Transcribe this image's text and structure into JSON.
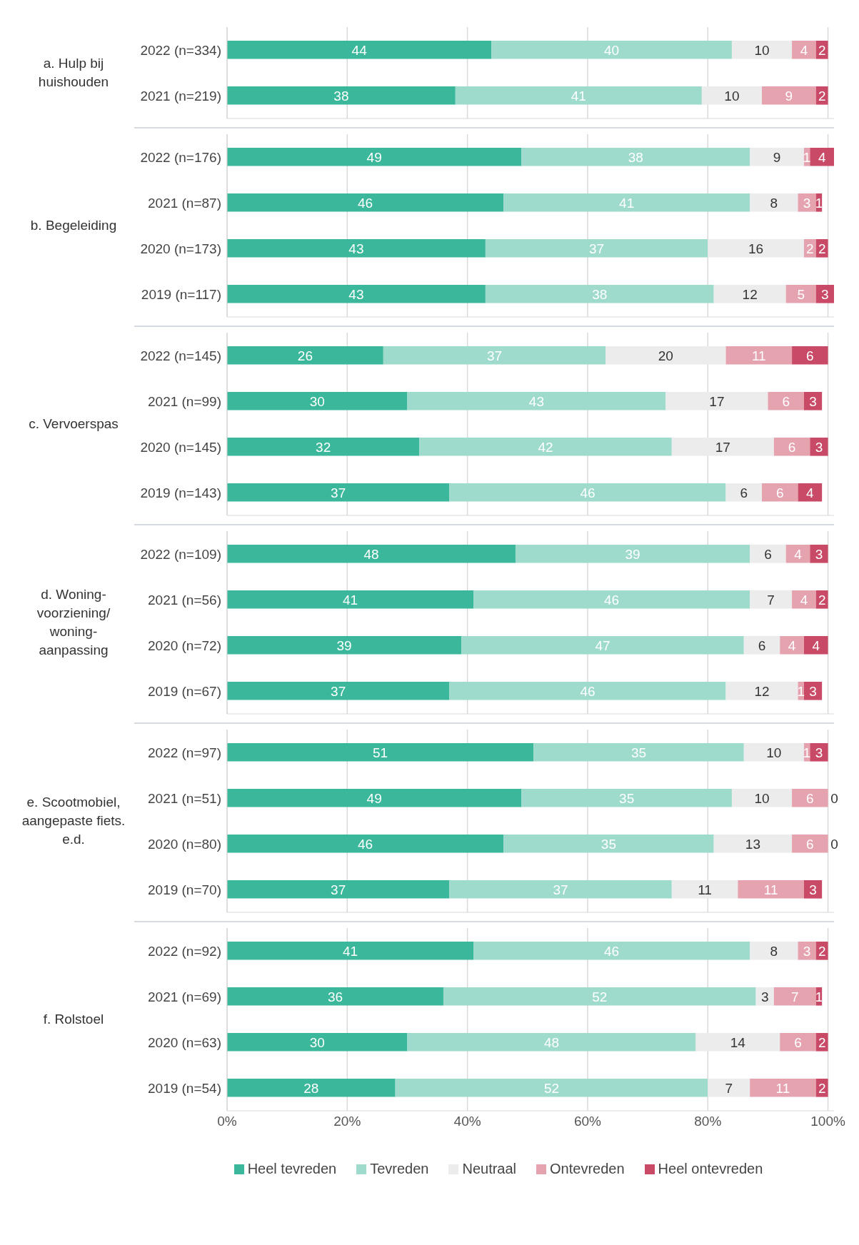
{
  "chart_data": [
    {
      "type": "bar",
      "orientation": "horizontal",
      "stacked": true,
      "data_labels": true,
      "grid": "x",
      "tick_labels": "y",
      "ylabel": "a. Hulp bij huishouden",
      "categories": [
        "2022 (n=334)",
        "2021 (n=219)"
      ],
      "xlim": [
        0,
        101
      ],
      "xticks": [
        0,
        20,
        40,
        60,
        80,
        100
      ],
      "series": [
        {
          "color": "#3bb89b",
          "values": [
            44,
            38
          ]
        },
        {
          "color": "#9edbcc",
          "values": [
            40,
            41
          ]
        },
        {
          "color": "#ececec",
          "values": [
            10,
            10
          ]
        },
        {
          "color": "#e5a3b0",
          "values": [
            4,
            9
          ]
        },
        {
          "color": "#c94a66",
          "values": [
            2,
            2
          ]
        }
      ]
    },
    {
      "type": "bar",
      "orientation": "horizontal",
      "stacked": true,
      "data_labels": true,
      "grid": "x",
      "tick_labels": "y",
      "ylabel": "b. Begeleiding",
      "categories": [
        "2022 (n=176)",
        "2021 (n=87)",
        "2020 (n=173)",
        "2019 (n=117)"
      ],
      "xlim": [
        0,
        101
      ],
      "xticks": [
        0,
        20,
        40,
        60,
        80,
        100
      ],
      "series": [
        {
          "color": "#3bb89b",
          "values": [
            49,
            46,
            43,
            43
          ]
        },
        {
          "color": "#9edbcc",
          "values": [
            38,
            41,
            37,
            38
          ]
        },
        {
          "color": "#ececec",
          "values": [
            9,
            8,
            16,
            12
          ]
        },
        {
          "color": "#e5a3b0",
          "values": [
            1,
            3,
            2,
            5
          ]
        },
        {
          "color": "#c94a66",
          "values": [
            4,
            1,
            2,
            3
          ]
        }
      ]
    },
    {
      "type": "bar",
      "orientation": "horizontal",
      "stacked": true,
      "data_labels": true,
      "grid": "x",
      "tick_labels": "y",
      "ylabel": "c. Vervoerspas",
      "categories": [
        "2022 (n=145)",
        "2021 (n=99)",
        "2020 (n=145)",
        "2019 (n=143)"
      ],
      "xlim": [
        0,
        101
      ],
      "xticks": [
        0,
        20,
        40,
        60,
        80,
        100
      ],
      "series": [
        {
          "color": "#3bb89b",
          "values": [
            26,
            30,
            32,
            37
          ]
        },
        {
          "color": "#9edbcc",
          "values": [
            37,
            43,
            42,
            46
          ]
        },
        {
          "color": "#ececec",
          "values": [
            20,
            17,
            17,
            6
          ]
        },
        {
          "color": "#e5a3b0",
          "values": [
            11,
            6,
            6,
            6
          ]
        },
        {
          "color": "#c94a66",
          "values": [
            6,
            3,
            3,
            4
          ]
        }
      ]
    },
    {
      "type": "bar",
      "orientation": "horizontal",
      "stacked": true,
      "data_labels": true,
      "grid": "x",
      "tick_labels": "y",
      "ylabel": "d. Woning-voorziening/ woning-aanpassing",
      "categories": [
        "2022 (n=109)",
        "2021 (n=56)",
        "2020 (n=72)",
        "2019 (n=67)"
      ],
      "xlim": [
        0,
        101
      ],
      "xticks": [
        0,
        20,
        40,
        60,
        80,
        100
      ],
      "series": [
        {
          "color": "#3bb89b",
          "values": [
            48,
            41,
            39,
            37
          ]
        },
        {
          "color": "#9edbcc",
          "values": [
            39,
            46,
            47,
            46
          ]
        },
        {
          "color": "#ececec",
          "values": [
            6,
            7,
            6,
            12
          ]
        },
        {
          "color": "#e5a3b0",
          "values": [
            4,
            4,
            4,
            1
          ]
        },
        {
          "color": "#c94a66",
          "values": [
            3,
            2,
            4,
            3
          ]
        }
      ]
    },
    {
      "type": "bar",
      "orientation": "horizontal",
      "stacked": true,
      "data_labels": true,
      "grid": "x",
      "tick_labels": "y",
      "ylabel": "e. Scootmobiel, aangepaste fiets. e.d.",
      "categories": [
        "2022 (n=97)",
        "2021 (n=51)",
        "2020 (n=80)",
        "2019 (n=70)"
      ],
      "xlim": [
        0,
        101
      ],
      "xticks": [
        0,
        20,
        40,
        60,
        80,
        100
      ],
      "series": [
        {
          "color": "#3bb89b",
          "values": [
            51,
            49,
            46,
            37
          ]
        },
        {
          "color": "#9edbcc",
          "values": [
            35,
            35,
            35,
            37
          ]
        },
        {
          "color": "#ececec",
          "values": [
            10,
            10,
            13,
            11
          ]
        },
        {
          "color": "#e5a3b0",
          "values": [
            1,
            6,
            6,
            11
          ]
        },
        {
          "color": "#c94a66",
          "values": [
            3,
            0,
            0,
            3
          ]
        }
      ]
    },
    {
      "type": "bar",
      "orientation": "horizontal",
      "stacked": true,
      "data_labels": true,
      "grid": "x",
      "legend": "bottom",
      "ylabel": "f. Rolstoel",
      "categories": [
        "2022 (n=92)",
        "2021 (n=69)",
        "2020 (n=63)",
        "2019 (n=54)"
      ],
      "xlim": [
        0,
        101
      ],
      "xticks": [
        {
          "value": 0,
          "label": "0%"
        },
        {
          "value": 20,
          "label": "20%"
        },
        {
          "value": 40,
          "label": "40%"
        },
        {
          "value": 60,
          "label": "60%"
        },
        {
          "value": 80,
          "label": "80%"
        },
        {
          "value": 100,
          "label": "100%"
        }
      ],
      "series": [
        {
          "name": "Heel tevreden",
          "color": "#3bb89b",
          "values": [
            41,
            36,
            30,
            28
          ]
        },
        {
          "name": "Tevreden",
          "color": "#9edbcc",
          "values": [
            46,
            52,
            48,
            52
          ]
        },
        {
          "name": "Neutraal",
          "color": "#ececec",
          "values": [
            8,
            3,
            14,
            7
          ]
        },
        {
          "name": "Ontevreden",
          "color": "#e5a3b0",
          "values": [
            3,
            7,
            6,
            11
          ]
        },
        {
          "name": "Heel ontevreden",
          "color": "#c94a66",
          "values": [
            2,
            1,
            2,
            2
          ]
        }
      ]
    }
  ]
}
